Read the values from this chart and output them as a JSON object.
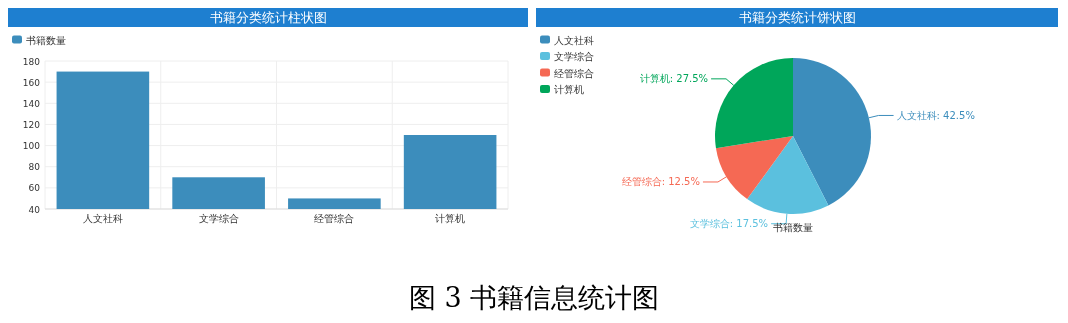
{
  "chart_data": [
    {
      "type": "bar",
      "title": "书籍分类统计柱状图",
      "categories": [
        "人文社科",
        "文学综合",
        "经管综合",
        "计算机"
      ],
      "series": [
        {
          "name": "书籍数量",
          "color": "#3c8dbc",
          "values": [
            170,
            70,
            50,
            110
          ]
        }
      ],
      "ylim": [
        40,
        180
      ],
      "yticks": [
        40,
        60,
        80,
        100,
        120,
        140,
        160,
        180
      ],
      "grid": true,
      "legend": "top left",
      "annotations": [
        "图 3 书籍信息统计图"
      ]
    },
    {
      "type": "pie",
      "title": "书籍分类统计饼状图",
      "categories": [
        "人文社科",
        "文学综合",
        "经管综合",
        "计算机"
      ],
      "values": [
        42.5,
        17.5,
        12.5,
        27.5
      ],
      "colors": [
        "#3c8dbc",
        "#5bc0de",
        "#f56954",
        "#00a65a"
      ],
      "value_labels": [
        "人文社科: 42.5%",
        "文学综合: 17.5%",
        "经管综合: 12.5%",
        "计算机: 27.5%"
      ],
      "legend": "top left",
      "annotations": [
        "书籍数量"
      ]
    }
  ]
}
